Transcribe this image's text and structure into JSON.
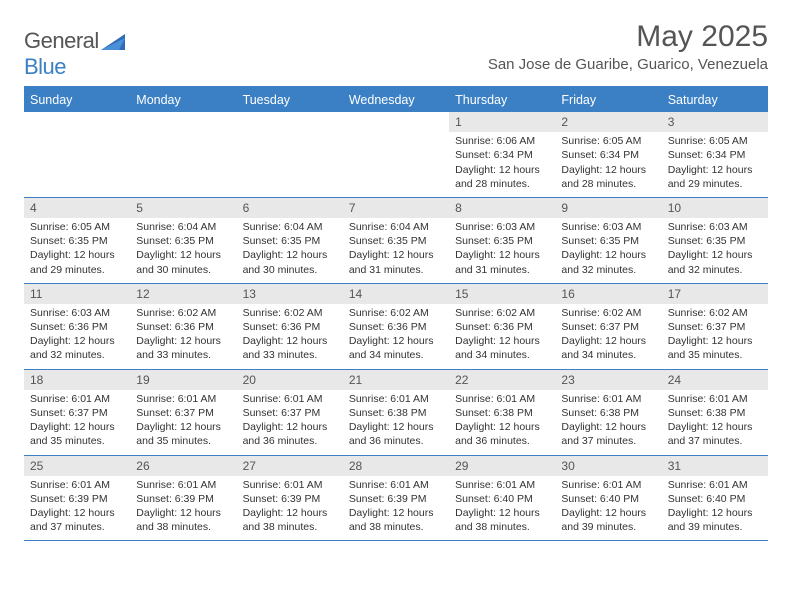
{
  "brand": {
    "part1": "General",
    "part2": "Blue"
  },
  "title": "May 2025",
  "location": "San Jose de Guaribe, Guarico, Venezuela",
  "colors": {
    "accent": "#3b7fc4",
    "dayband": "#e8e8e8",
    "bg": "#ffffff",
    "text": "#333333",
    "muted": "#555555"
  },
  "fonts": {
    "title_size": 30,
    "location_size": 15,
    "header_size": 12.5,
    "cell_size": 10.5
  },
  "weekdays": [
    "Sunday",
    "Monday",
    "Tuesday",
    "Wednesday",
    "Thursday",
    "Friday",
    "Saturday"
  ],
  "grid": {
    "rows": 5,
    "cols": 7
  },
  "days": [
    {
      "n": "",
      "sr": "",
      "ss": "",
      "dl": ""
    },
    {
      "n": "",
      "sr": "",
      "ss": "",
      "dl": ""
    },
    {
      "n": "",
      "sr": "",
      "ss": "",
      "dl": ""
    },
    {
      "n": "",
      "sr": "",
      "ss": "",
      "dl": ""
    },
    {
      "n": "1",
      "sr": "Sunrise: 6:06 AM",
      "ss": "Sunset: 6:34 PM",
      "dl": "Daylight: 12 hours and 28 minutes."
    },
    {
      "n": "2",
      "sr": "Sunrise: 6:05 AM",
      "ss": "Sunset: 6:34 PM",
      "dl": "Daylight: 12 hours and 28 minutes."
    },
    {
      "n": "3",
      "sr": "Sunrise: 6:05 AM",
      "ss": "Sunset: 6:34 PM",
      "dl": "Daylight: 12 hours and 29 minutes."
    },
    {
      "n": "4",
      "sr": "Sunrise: 6:05 AM",
      "ss": "Sunset: 6:35 PM",
      "dl": "Daylight: 12 hours and 29 minutes."
    },
    {
      "n": "5",
      "sr": "Sunrise: 6:04 AM",
      "ss": "Sunset: 6:35 PM",
      "dl": "Daylight: 12 hours and 30 minutes."
    },
    {
      "n": "6",
      "sr": "Sunrise: 6:04 AM",
      "ss": "Sunset: 6:35 PM",
      "dl": "Daylight: 12 hours and 30 minutes."
    },
    {
      "n": "7",
      "sr": "Sunrise: 6:04 AM",
      "ss": "Sunset: 6:35 PM",
      "dl": "Daylight: 12 hours and 31 minutes."
    },
    {
      "n": "8",
      "sr": "Sunrise: 6:03 AM",
      "ss": "Sunset: 6:35 PM",
      "dl": "Daylight: 12 hours and 31 minutes."
    },
    {
      "n": "9",
      "sr": "Sunrise: 6:03 AM",
      "ss": "Sunset: 6:35 PM",
      "dl": "Daylight: 12 hours and 32 minutes."
    },
    {
      "n": "10",
      "sr": "Sunrise: 6:03 AM",
      "ss": "Sunset: 6:35 PM",
      "dl": "Daylight: 12 hours and 32 minutes."
    },
    {
      "n": "11",
      "sr": "Sunrise: 6:03 AM",
      "ss": "Sunset: 6:36 PM",
      "dl": "Daylight: 12 hours and 32 minutes."
    },
    {
      "n": "12",
      "sr": "Sunrise: 6:02 AM",
      "ss": "Sunset: 6:36 PM",
      "dl": "Daylight: 12 hours and 33 minutes."
    },
    {
      "n": "13",
      "sr": "Sunrise: 6:02 AM",
      "ss": "Sunset: 6:36 PM",
      "dl": "Daylight: 12 hours and 33 minutes."
    },
    {
      "n": "14",
      "sr": "Sunrise: 6:02 AM",
      "ss": "Sunset: 6:36 PM",
      "dl": "Daylight: 12 hours and 34 minutes."
    },
    {
      "n": "15",
      "sr": "Sunrise: 6:02 AM",
      "ss": "Sunset: 6:36 PM",
      "dl": "Daylight: 12 hours and 34 minutes."
    },
    {
      "n": "16",
      "sr": "Sunrise: 6:02 AM",
      "ss": "Sunset: 6:37 PM",
      "dl": "Daylight: 12 hours and 34 minutes."
    },
    {
      "n": "17",
      "sr": "Sunrise: 6:02 AM",
      "ss": "Sunset: 6:37 PM",
      "dl": "Daylight: 12 hours and 35 minutes."
    },
    {
      "n": "18",
      "sr": "Sunrise: 6:01 AM",
      "ss": "Sunset: 6:37 PM",
      "dl": "Daylight: 12 hours and 35 minutes."
    },
    {
      "n": "19",
      "sr": "Sunrise: 6:01 AM",
      "ss": "Sunset: 6:37 PM",
      "dl": "Daylight: 12 hours and 35 minutes."
    },
    {
      "n": "20",
      "sr": "Sunrise: 6:01 AM",
      "ss": "Sunset: 6:37 PM",
      "dl": "Daylight: 12 hours and 36 minutes."
    },
    {
      "n": "21",
      "sr": "Sunrise: 6:01 AM",
      "ss": "Sunset: 6:38 PM",
      "dl": "Daylight: 12 hours and 36 minutes."
    },
    {
      "n": "22",
      "sr": "Sunrise: 6:01 AM",
      "ss": "Sunset: 6:38 PM",
      "dl": "Daylight: 12 hours and 36 minutes."
    },
    {
      "n": "23",
      "sr": "Sunrise: 6:01 AM",
      "ss": "Sunset: 6:38 PM",
      "dl": "Daylight: 12 hours and 37 minutes."
    },
    {
      "n": "24",
      "sr": "Sunrise: 6:01 AM",
      "ss": "Sunset: 6:38 PM",
      "dl": "Daylight: 12 hours and 37 minutes."
    },
    {
      "n": "25",
      "sr": "Sunrise: 6:01 AM",
      "ss": "Sunset: 6:39 PM",
      "dl": "Daylight: 12 hours and 37 minutes."
    },
    {
      "n": "26",
      "sr": "Sunrise: 6:01 AM",
      "ss": "Sunset: 6:39 PM",
      "dl": "Daylight: 12 hours and 38 minutes."
    },
    {
      "n": "27",
      "sr": "Sunrise: 6:01 AM",
      "ss": "Sunset: 6:39 PM",
      "dl": "Daylight: 12 hours and 38 minutes."
    },
    {
      "n": "28",
      "sr": "Sunrise: 6:01 AM",
      "ss": "Sunset: 6:39 PM",
      "dl": "Daylight: 12 hours and 38 minutes."
    },
    {
      "n": "29",
      "sr": "Sunrise: 6:01 AM",
      "ss": "Sunset: 6:40 PM",
      "dl": "Daylight: 12 hours and 38 minutes."
    },
    {
      "n": "30",
      "sr": "Sunrise: 6:01 AM",
      "ss": "Sunset: 6:40 PM",
      "dl": "Daylight: 12 hours and 39 minutes."
    },
    {
      "n": "31",
      "sr": "Sunrise: 6:01 AM",
      "ss": "Sunset: 6:40 PM",
      "dl": "Daylight: 12 hours and 39 minutes."
    }
  ]
}
